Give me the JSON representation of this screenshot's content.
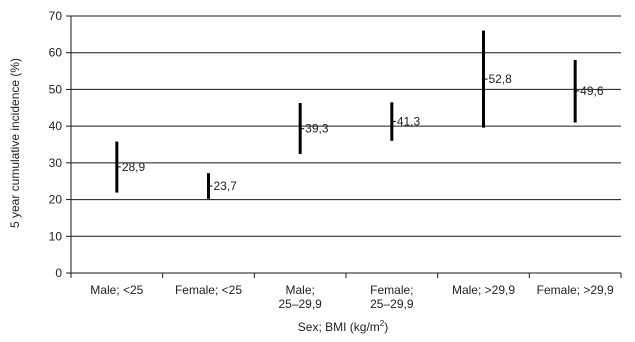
{
  "chart_data": {
    "type": "errorbar",
    "title": "",
    "ylabel": "5 year cumulative incidence (%)",
    "xlabel": "Sex; BMI (kg/m",
    "xlabel_sup": "2",
    "xlabel_end": ")",
    "ylim": [
      0,
      70
    ],
    "yticks": [
      0,
      10,
      20,
      30,
      40,
      50,
      60,
      70
    ],
    "yticks_labels": [
      "0",
      "10",
      "20",
      "30",
      "40",
      "50",
      "60",
      "70"
    ],
    "grid": true,
    "categories": [
      [
        "Male; <25"
      ],
      [
        "Female; <25"
      ],
      [
        "Male;",
        "25–29,9"
      ],
      [
        "Female;",
        "25–29,9"
      ],
      [
        "Male; >29,9"
      ],
      [
        "Female; >29,9"
      ]
    ],
    "values": [
      28.9,
      23.7,
      39.3,
      41.3,
      52.8,
      49.6
    ],
    "value_labels": [
      "28,9",
      "23,7",
      "39,3",
      "41,3",
      "52,8",
      "49,6"
    ],
    "lower": [
      21.9,
      20.2,
      32.4,
      36.0,
      39.6,
      41.0
    ],
    "upper": [
      35.8,
      27.2,
      46.3,
      46.5,
      66.0,
      58.0
    ]
  }
}
